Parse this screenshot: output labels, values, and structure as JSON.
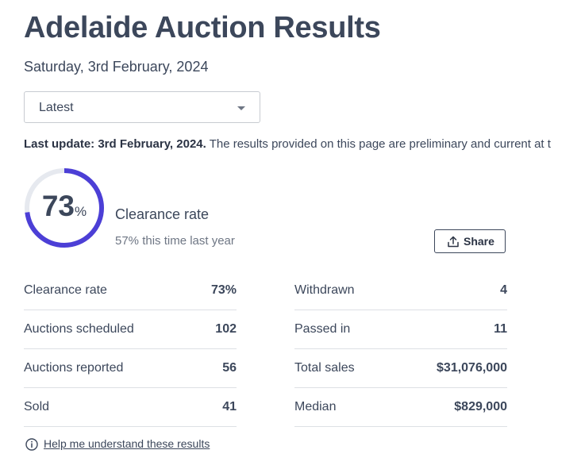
{
  "header": {
    "title": "Adelaide Auction Results",
    "date": "Saturday, 3rd February, 2024"
  },
  "filter": {
    "selected": "Latest"
  },
  "update": {
    "bold": "Last update: 3rd February, 2024.",
    "text": " The results provided on this page are preliminary and current at t"
  },
  "clearance": {
    "value": 73,
    "number": "73",
    "unit": "%",
    "label": "Clearance rate",
    "last_year": "57% this time last year",
    "ring_color": "#4c3fd6",
    "track_color": "#e6e9ef"
  },
  "share": {
    "label": "Share",
    "icon": "upload-icon"
  },
  "stats_left": [
    {
      "label": "Clearance rate",
      "value": "73%"
    },
    {
      "label": "Auctions scheduled",
      "value": "102"
    },
    {
      "label": "Auctions reported",
      "value": "56"
    },
    {
      "label": "Sold",
      "value": "41"
    }
  ],
  "stats_right": [
    {
      "label": "Withdrawn",
      "value": "4"
    },
    {
      "label": "Passed in",
      "value": "11"
    },
    {
      "label": "Total sales",
      "value": "$31,076,000"
    },
    {
      "label": "Median",
      "value": "$829,000"
    }
  ],
  "help": {
    "label": "Help me understand these results",
    "icon": "info-icon"
  }
}
